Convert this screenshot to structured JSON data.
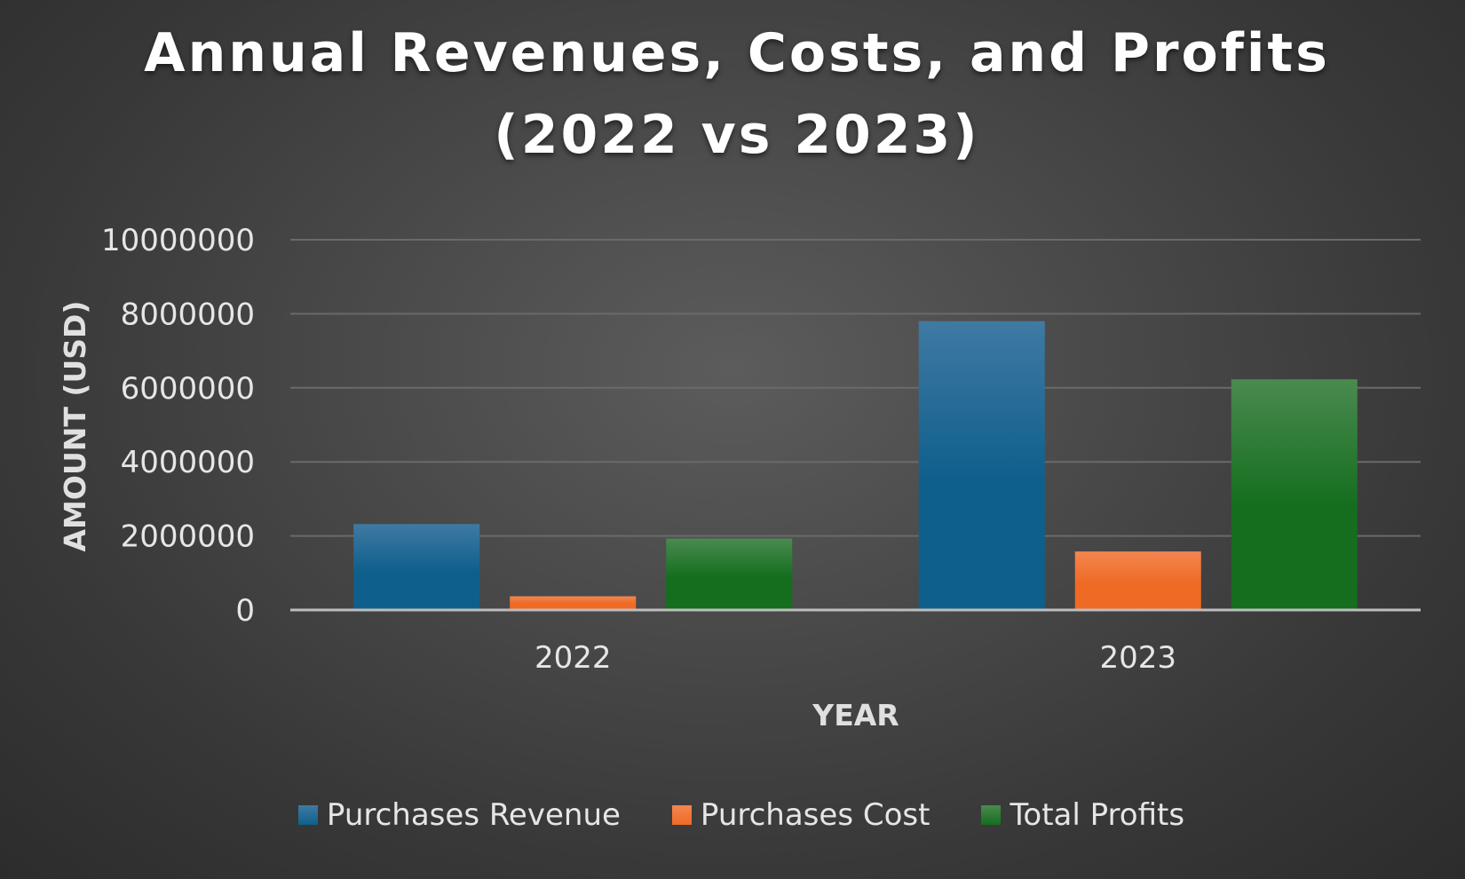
{
  "chart_data": {
    "type": "bar",
    "title_lines": [
      "Annual Revenues, Costs, and Profits",
      "(2022 vs 2023)"
    ],
    "xlabel": "YEAR",
    "ylabel": "AMOUNT (USD)",
    "categories": [
      "2022",
      "2023"
    ],
    "ylim": [
      0,
      10000000
    ],
    "yticks": [
      0,
      2000000,
      4000000,
      6000000,
      8000000,
      10000000
    ],
    "ytick_labels": [
      "0",
      "2000000",
      "4000000",
      "6000000",
      "8000000",
      "10000000"
    ],
    "grid": true,
    "legend_position": "bottom",
    "series": [
      {
        "name": "Purchases Revenue",
        "values": [
          2320000,
          7800000
        ],
        "color": "#0f5f8c",
        "color_top": "#3f7aa3"
      },
      {
        "name": "Purchases Cost",
        "values": [
          370000,
          1580000
        ],
        "color": "#ef6a24",
        "color_top": "#f38650"
      },
      {
        "name": "Total Profits",
        "values": [
          1930000,
          6230000
        ],
        "color": "#146e1e",
        "color_top": "#4a8a4f"
      }
    ]
  }
}
